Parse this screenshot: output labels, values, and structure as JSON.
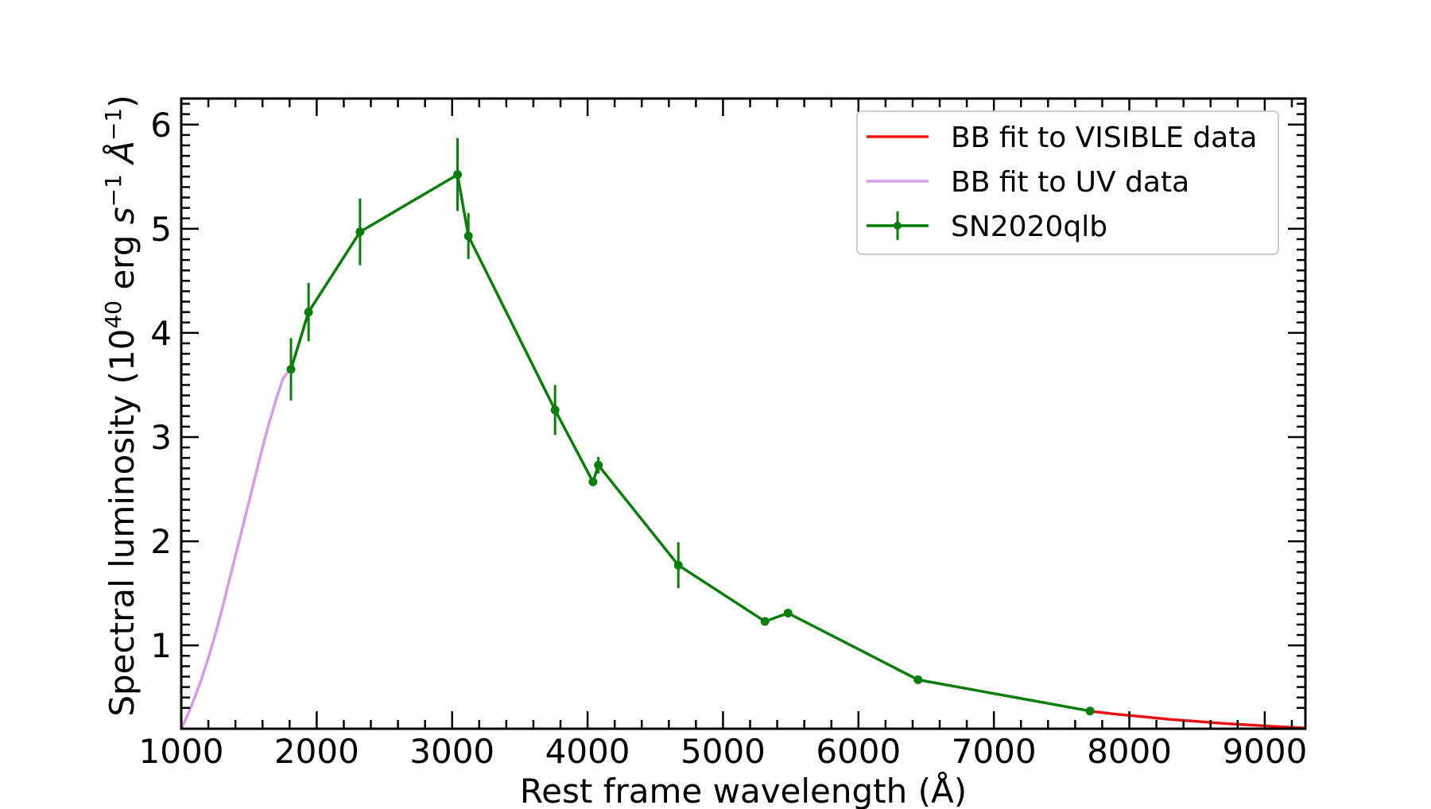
{
  "chart_data": {
    "type": "line",
    "xlabel": "Rest frame wavelength (Å)",
    "ylabel": {
      "prefix": "Spectral luminosity (10",
      "exp1": "40",
      "mid1": " erg ",
      "s": "s",
      "exp2": "−1",
      "angstrom": " Å",
      "exp3": "−1",
      "suffix": ")"
    },
    "xlim": [
      1000,
      9300
    ],
    "ylim": [
      0.2,
      6.25
    ],
    "xticks": [
      1000,
      2000,
      3000,
      4000,
      5000,
      6000,
      7000,
      8000,
      9000
    ],
    "xtick_labels": [
      "1000",
      "2000",
      "3000",
      "4000",
      "5000",
      "6000",
      "7000",
      "8000",
      "9000"
    ],
    "yticks": [
      1,
      2,
      3,
      4,
      5,
      6
    ],
    "ytick_labels": [
      "1",
      "2",
      "3",
      "4",
      "5",
      "6"
    ],
    "legend_position": "top-right",
    "series": [
      {
        "name": "BB fit to VISIBLE data",
        "color": "#ee1111",
        "kind": "line",
        "x": [
          7700,
          7900,
          8100,
          8300,
          8500,
          8700,
          8900,
          9100,
          9300
        ],
        "y": [
          0.37,
          0.34,
          0.315,
          0.29,
          0.27,
          0.25,
          0.235,
          0.22,
          0.205
        ]
      },
      {
        "name": "BB fit to UV data",
        "color": "#d49be8",
        "kind": "line",
        "x": [
          1000,
          1050,
          1100,
          1150,
          1200,
          1250,
          1300,
          1350,
          1400,
          1450,
          1500,
          1550,
          1600,
          1650,
          1700,
          1750,
          1800
        ],
        "y": [
          0.2,
          0.34,
          0.5,
          0.68,
          0.88,
          1.1,
          1.34,
          1.6,
          1.86,
          2.12,
          2.38,
          2.64,
          2.9,
          3.14,
          3.36,
          3.56,
          3.65
        ]
      },
      {
        "name": "SN2020qlb",
        "color": "#0b7d0b",
        "kind": "errorbar",
        "x": [
          1810,
          1940,
          2320,
          3040,
          3120,
          3760,
          4040,
          4080,
          4670,
          5310,
          5480,
          6440,
          7710
        ],
        "y": [
          3.65,
          4.2,
          4.97,
          5.52,
          4.93,
          3.26,
          2.57,
          2.73,
          1.77,
          1.23,
          1.31,
          0.67,
          0.37
        ],
        "yerr": [
          0.3,
          0.28,
          0.32,
          0.35,
          0.22,
          0.24,
          0.0,
          0.08,
          0.22,
          0.0,
          0.0,
          0.0,
          0.0
        ]
      }
    ]
  }
}
